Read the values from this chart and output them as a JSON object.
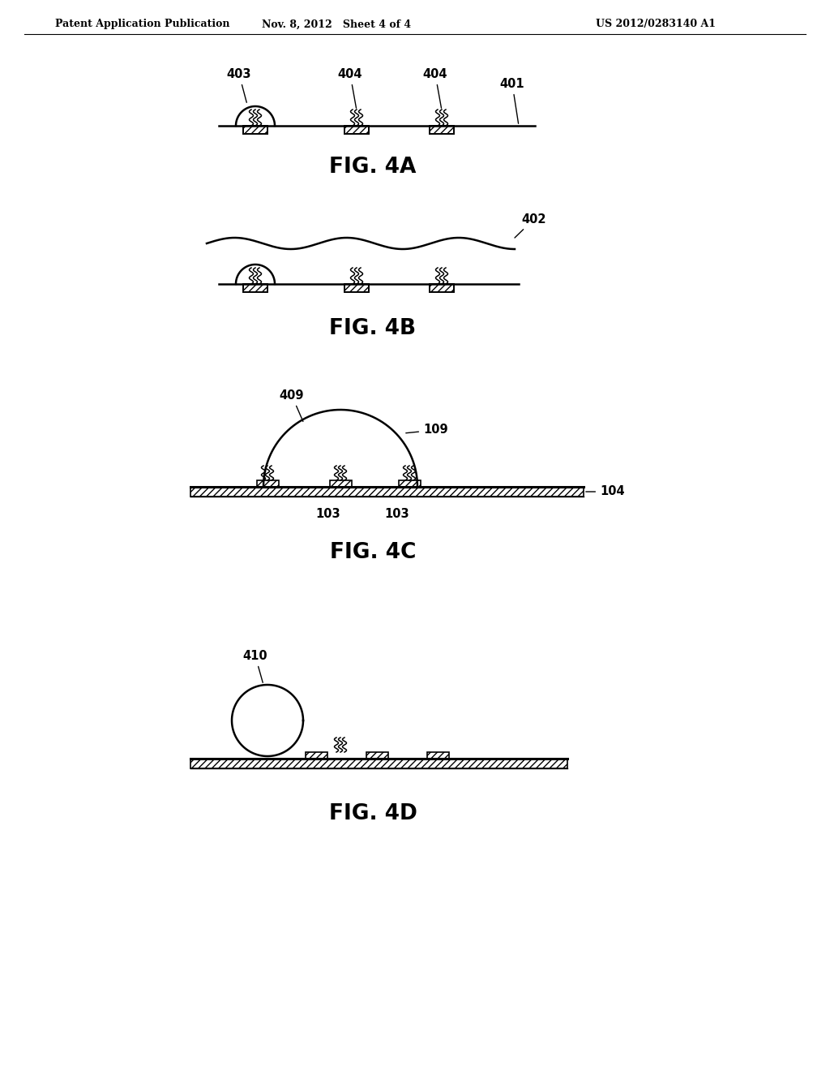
{
  "bg_color": "#ffffff",
  "text_color": "#000000",
  "header_left": "Patent Application Publication",
  "header_mid": "Nov. 8, 2012   Sheet 4 of 4",
  "header_right": "US 2012/0283140 A1",
  "fig4A_label": "FIG. 4A",
  "fig4B_label": "FIG. 4B",
  "fig4C_label": "FIG. 4C",
  "fig4D_label": "FIG. 4D",
  "label_403": "403",
  "label_404a": "404",
  "label_404b": "404",
  "label_401": "401",
  "label_402": "402",
  "label_409": "409",
  "label_109": "109",
  "label_104": "104",
  "label_103a": "103",
  "label_103b": "103",
  "label_410": "410",
  "line_color": "#000000"
}
